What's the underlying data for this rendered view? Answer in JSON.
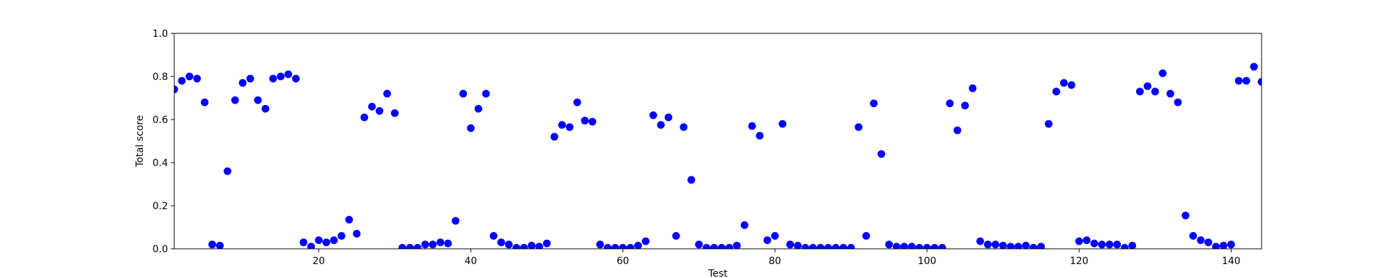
{
  "chart_data": {
    "type": "scatter",
    "title": "",
    "xlabel": "Test",
    "ylabel": "Total score",
    "xlim": [
      1,
      144
    ],
    "ylim": [
      0.0,
      1.0
    ],
    "xticks": [
      20,
      40,
      60,
      80,
      100,
      120,
      140
    ],
    "yticks": [
      "0.0",
      "0.2",
      "0.4",
      "0.6",
      "0.8",
      "1.0"
    ],
    "grid": false,
    "legend": "none",
    "marker_color": "#0000ff",
    "series": [
      {
        "x": [
          1,
          2,
          3,
          4,
          5,
          6,
          7,
          8,
          9,
          10,
          11,
          12,
          13,
          14,
          15,
          16,
          17,
          18,
          19,
          20,
          21,
          22,
          23,
          24,
          25,
          26,
          27,
          28,
          29,
          30,
          31,
          32,
          33,
          34,
          35,
          36,
          37,
          38,
          39,
          40,
          41,
          42,
          43,
          44,
          45,
          46,
          47,
          48,
          49,
          50,
          51,
          52,
          53,
          54,
          55,
          56,
          57,
          58,
          59,
          60,
          61,
          62,
          63,
          64,
          65,
          66,
          67,
          68,
          69,
          70,
          71,
          72,
          73,
          74,
          75,
          76,
          77,
          78,
          79,
          80,
          81,
          82,
          83,
          84,
          85,
          86,
          87,
          88,
          89,
          90,
          91,
          92,
          93,
          94,
          95,
          96,
          97,
          98,
          99,
          100,
          101,
          102,
          103,
          104,
          105,
          106,
          107,
          108,
          109,
          110,
          111,
          112,
          113,
          114,
          115,
          116,
          117,
          118,
          119,
          120,
          121,
          122,
          123,
          124,
          125,
          126,
          127,
          128,
          129,
          130,
          131,
          132,
          133,
          134,
          135,
          136,
          137,
          138,
          139,
          140,
          141,
          142,
          143,
          144
        ],
        "y": [
          0.74,
          0.78,
          0.8,
          0.79,
          0.68,
          0.02,
          0.015,
          0.36,
          0.69,
          0.77,
          0.79,
          0.69,
          0.65,
          0.79,
          0.8,
          0.81,
          0.79,
          0.03,
          0.01,
          0.04,
          0.03,
          0.04,
          0.06,
          0.135,
          0.07,
          0.61,
          0.66,
          0.64,
          0.72,
          0.63,
          0.005,
          0.005,
          0.005,
          0.02,
          0.02,
          0.03,
          0.025,
          0.13,
          0.72,
          0.56,
          0.65,
          0.72,
          0.06,
          0.03,
          0.02,
          0.005,
          0.005,
          0.015,
          0.01,
          0.025,
          0.52,
          0.575,
          0.565,
          0.68,
          0.595,
          0.59,
          0.02,
          0.005,
          0.005,
          0.005,
          0.005,
          0.015,
          0.035,
          0.62,
          0.575,
          0.61,
          0.06,
          0.565,
          0.32,
          0.02,
          0.005,
          0.005,
          0.005,
          0.005,
          0.015,
          0.11,
          0.57,
          0.525,
          0.04,
          0.06,
          0.58,
          0.02,
          0.015,
          0.005,
          0.005,
          0.005,
          0.005,
          0.005,
          0.005,
          0.005,
          0.565,
          0.06,
          0.675,
          0.44,
          0.02,
          0.01,
          0.01,
          0.01,
          0.005,
          0.005,
          0.005,
          0.005,
          0.675,
          0.55,
          0.665,
          0.745,
          0.035,
          0.02,
          0.02,
          0.015,
          0.01,
          0.01,
          0.015,
          0.005,
          0.01,
          0.58,
          0.73,
          0.77,
          0.76,
          0.035,
          0.04,
          0.025,
          0.02,
          0.02,
          0.02,
          0.005,
          0.015,
          0.73,
          0.755,
          0.73,
          0.815,
          0.72,
          0.68,
          0.155,
          0.06,
          0.04,
          0.03,
          0.01,
          0.015,
          0.02,
          0.78,
          0.78,
          0.845,
          0.775
        ]
      }
    ]
  }
}
